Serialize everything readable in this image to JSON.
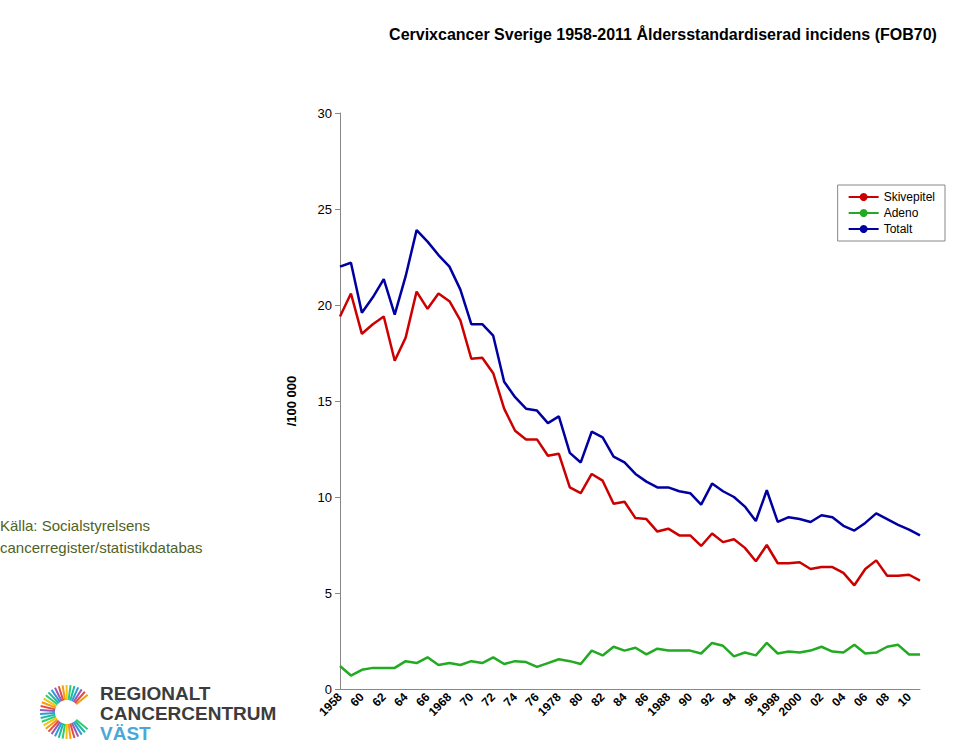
{
  "chart_data": {
    "type": "line",
    "title": "Cervixcancer Sverige 1958-2011 Åldersstandardiserad incidens (FOB70)",
    "y_label": "/100 000",
    "annotations": [
      "Källa: Socialstyrelsens",
      "cancerregister/statistikdatabas",
      "REGIONALT",
      "CANCERCENTRUM",
      "VÄST"
    ],
    "categories": [
      "1958",
      null,
      "60",
      null,
      "62",
      null,
      "64",
      null,
      "66",
      null,
      "1968",
      null,
      "70",
      null,
      "72",
      null,
      "74",
      null,
      "76",
      null,
      "1978",
      null,
      "80",
      null,
      "82",
      null,
      "84",
      null,
      "86",
      null,
      "1988",
      null,
      "90",
      null,
      "92",
      null,
      "94",
      null,
      "96",
      null,
      "1998",
      null,
      "2000",
      null,
      "02",
      null,
      "04",
      null,
      "06",
      null,
      "08",
      null,
      "10",
      null
    ],
    "series": [
      {
        "name": "Skivepitel",
        "color": "#cc0000",
        "values": [
          19.4,
          20.6,
          18.5,
          19.0,
          19.4,
          17.1,
          18.3,
          20.7,
          19.8,
          20.6,
          20.2,
          19.2,
          17.2,
          17.25,
          16.45,
          14.6,
          13.45,
          13.0,
          13.0,
          12.15,
          12.25,
          10.5,
          10.2,
          11.2,
          10.85,
          9.65,
          9.75,
          8.9,
          8.85,
          8.2,
          8.35,
          8.0,
          8.0,
          7.45,
          8.1,
          7.65,
          7.8,
          7.35,
          6.65,
          7.5,
          6.55,
          6.55,
          6.6,
          6.25,
          6.35,
          6.35,
          6.05,
          5.4,
          6.25,
          6.7,
          5.9,
          5.9,
          5.95,
          5.65
        ]
      },
      {
        "name": "Adeno",
        "color": "#22aa22",
        "values": [
          1.2,
          0.7,
          1.0,
          1.1,
          1.1,
          1.1,
          1.45,
          1.35,
          1.65,
          1.25,
          1.35,
          1.25,
          1.45,
          1.35,
          1.65,
          1.3,
          1.45,
          1.4,
          1.15,
          1.35,
          1.55,
          1.45,
          1.3,
          2.0,
          1.75,
          2.2,
          2.0,
          2.15,
          1.8,
          2.1,
          2.0,
          2.0,
          2.0,
          1.85,
          2.4,
          2.25,
          1.7,
          1.9,
          1.75,
          2.4,
          1.85,
          1.95,
          1.9,
          2.0,
          2.2,
          1.95,
          1.9,
          2.3,
          1.85,
          1.9,
          2.2,
          2.3,
          1.8,
          1.8
        ]
      },
      {
        "name": "Totalt",
        "color": "#0000a0",
        "values": [
          22.0,
          22.2,
          19.6,
          20.4,
          21.35,
          19.5,
          21.5,
          23.9,
          23.3,
          22.6,
          22.0,
          20.8,
          19.0,
          19.0,
          18.4,
          16.0,
          15.2,
          14.6,
          14.5,
          13.85,
          14.2,
          12.3,
          11.8,
          13.4,
          13.1,
          12.1,
          11.8,
          11.2,
          10.8,
          10.5,
          10.5,
          10.3,
          10.2,
          9.6,
          10.7,
          10.3,
          10.0,
          9.5,
          8.75,
          10.35,
          8.7,
          8.95,
          8.85,
          8.7,
          9.05,
          8.95,
          8.5,
          8.25,
          8.65,
          9.15,
          8.85,
          8.55,
          8.3,
          8.0
        ]
      }
    ],
    "ylim": [
      0,
      30
    ],
    "yticks": [
      0,
      5,
      10,
      15,
      20,
      25,
      30
    ],
    "grid": false,
    "legend": "top-right"
  }
}
